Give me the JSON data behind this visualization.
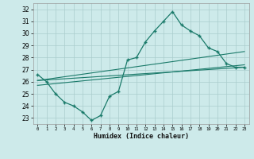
{
  "xlabel": "Humidex (Indice chaleur)",
  "background_color": "#cdeaea",
  "grid_color": "#aacccc",
  "line_color": "#1a7a6a",
  "xlim": [
    -0.5,
    23.5
  ],
  "ylim": [
    22.5,
    32.5
  ],
  "yticks": [
    23,
    24,
    25,
    26,
    27,
    28,
    29,
    30,
    31,
    32
  ],
  "xticks": [
    0,
    1,
    2,
    3,
    4,
    5,
    6,
    7,
    8,
    9,
    10,
    11,
    12,
    13,
    14,
    15,
    16,
    17,
    18,
    19,
    20,
    21,
    22,
    23
  ],
  "series1_x": [
    0,
    1,
    2,
    3,
    4,
    5,
    6,
    7,
    8,
    9,
    10,
    11,
    12,
    13,
    14,
    15,
    16,
    17,
    18,
    19,
    20,
    21,
    22,
    23
  ],
  "series1_y": [
    26.6,
    26.0,
    25.0,
    24.3,
    24.0,
    23.5,
    22.8,
    23.2,
    24.8,
    25.2,
    27.8,
    28.0,
    29.3,
    30.2,
    31.0,
    31.8,
    30.7,
    30.2,
    29.8,
    28.8,
    28.5,
    27.5,
    27.2,
    27.2
  ],
  "trend1_x": [
    0,
    23
  ],
  "trend1_y": [
    26.1,
    27.2
  ],
  "trend2_x": [
    0,
    23
  ],
  "trend2_y": [
    26.1,
    28.5
  ],
  "trend3_x": [
    0,
    23
  ],
  "trend3_y": [
    25.7,
    27.4
  ]
}
